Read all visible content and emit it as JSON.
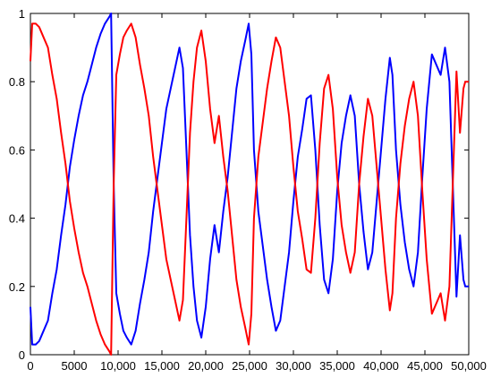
{
  "chart_data": {
    "type": "line",
    "title": "",
    "xlabel": "",
    "ylabel": "",
    "xlim": [
      0,
      50000
    ],
    "ylim": [
      0,
      1
    ],
    "grid": false,
    "x_ticks": [
      0,
      5000,
      10000,
      15000,
      20000,
      25000,
      30000,
      35000,
      40000,
      45000,
      50000
    ],
    "x_tick_labels": [
      "0",
      "5000",
      "10,000",
      "15,000",
      "20,000",
      "25,000",
      "30,000",
      "35,000",
      "40,000",
      "45,000",
      "50,000"
    ],
    "y_ticks": [
      0,
      0.2,
      0.4,
      0.6,
      0.8,
      1
    ],
    "y_tick_labels": [
      "0",
      "0.2",
      "0.4",
      "0.6",
      "0.8",
      "1"
    ],
    "series": [
      {
        "color": "#0000ff",
        "points": [
          [
            0,
            0.14
          ],
          [
            200,
            0.03
          ],
          [
            600,
            0.03
          ],
          [
            1000,
            0.04
          ],
          [
            1500,
            0.07
          ],
          [
            2000,
            0.1
          ],
          [
            2500,
            0.18
          ],
          [
            3000,
            0.25
          ],
          [
            3500,
            0.35
          ],
          [
            4000,
            0.44
          ],
          [
            4500,
            0.55
          ],
          [
            5000,
            0.63
          ],
          [
            5500,
            0.7
          ],
          [
            6000,
            0.76
          ],
          [
            6500,
            0.8
          ],
          [
            7000,
            0.85
          ],
          [
            7500,
            0.9
          ],
          [
            8000,
            0.94
          ],
          [
            8500,
            0.97
          ],
          [
            9000,
            0.99
          ],
          [
            9200,
            1.0
          ],
          [
            9500,
            0.5
          ],
          [
            9800,
            0.18
          ],
          [
            10200,
            0.12
          ],
          [
            10600,
            0.07
          ],
          [
            11000,
            0.05
          ],
          [
            11500,
            0.03
          ],
          [
            12000,
            0.07
          ],
          [
            12500,
            0.15
          ],
          [
            13000,
            0.22
          ],
          [
            13500,
            0.3
          ],
          [
            14000,
            0.42
          ],
          [
            14500,
            0.52
          ],
          [
            15000,
            0.62
          ],
          [
            15500,
            0.72
          ],
          [
            16000,
            0.78
          ],
          [
            16500,
            0.84
          ],
          [
            17000,
            0.9
          ],
          [
            17400,
            0.84
          ],
          [
            17800,
            0.6
          ],
          [
            18200,
            0.35
          ],
          [
            18600,
            0.2
          ],
          [
            19000,
            0.1
          ],
          [
            19500,
            0.05
          ],
          [
            20000,
            0.14
          ],
          [
            20500,
            0.28
          ],
          [
            21000,
            0.38
          ],
          [
            21500,
            0.3
          ],
          [
            22000,
            0.42
          ],
          [
            22500,
            0.52
          ],
          [
            23000,
            0.65
          ],
          [
            23500,
            0.78
          ],
          [
            24000,
            0.86
          ],
          [
            24500,
            0.92
          ],
          [
            24900,
            0.97
          ],
          [
            25200,
            0.88
          ],
          [
            25500,
            0.6
          ],
          [
            26000,
            0.42
          ],
          [
            26500,
            0.32
          ],
          [
            27000,
            0.22
          ],
          [
            27500,
            0.14
          ],
          [
            28000,
            0.07
          ],
          [
            28500,
            0.1
          ],
          [
            29000,
            0.2
          ],
          [
            29500,
            0.3
          ],
          [
            30000,
            0.45
          ],
          [
            30500,
            0.58
          ],
          [
            31000,
            0.66
          ],
          [
            31500,
            0.75
          ],
          [
            32000,
            0.76
          ],
          [
            32500,
            0.6
          ],
          [
            33000,
            0.38
          ],
          [
            33500,
            0.22
          ],
          [
            34000,
            0.18
          ],
          [
            34500,
            0.28
          ],
          [
            35000,
            0.48
          ],
          [
            35500,
            0.62
          ],
          [
            36000,
            0.7
          ],
          [
            36500,
            0.76
          ],
          [
            37000,
            0.7
          ],
          [
            37500,
            0.5
          ],
          [
            38000,
            0.36
          ],
          [
            38500,
            0.25
          ],
          [
            39000,
            0.3
          ],
          [
            39500,
            0.45
          ],
          [
            40000,
            0.6
          ],
          [
            40500,
            0.75
          ],
          [
            41000,
            0.87
          ],
          [
            41300,
            0.82
          ],
          [
            41700,
            0.6
          ],
          [
            42200,
            0.44
          ],
          [
            42700,
            0.33
          ],
          [
            43200,
            0.25
          ],
          [
            43700,
            0.2
          ],
          [
            44200,
            0.3
          ],
          [
            44700,
            0.52
          ],
          [
            45200,
            0.72
          ],
          [
            45800,
            0.88
          ],
          [
            46300,
            0.85
          ],
          [
            46800,
            0.82
          ],
          [
            47300,
            0.9
          ],
          [
            47800,
            0.8
          ],
          [
            48200,
            0.48
          ],
          [
            48600,
            0.17
          ],
          [
            49000,
            0.35
          ],
          [
            49400,
            0.22
          ],
          [
            49600,
            0.2
          ],
          [
            50000,
            0.2
          ]
        ]
      },
      {
        "color": "#ff0000",
        "points": [
          [
            0,
            0.86
          ],
          [
            200,
            0.97
          ],
          [
            600,
            0.97
          ],
          [
            1000,
            0.96
          ],
          [
            1500,
            0.93
          ],
          [
            2000,
            0.9
          ],
          [
            2500,
            0.82
          ],
          [
            3000,
            0.75
          ],
          [
            3500,
            0.65
          ],
          [
            4000,
            0.56
          ],
          [
            4500,
            0.45
          ],
          [
            5000,
            0.37
          ],
          [
            5500,
            0.3
          ],
          [
            6000,
            0.24
          ],
          [
            6500,
            0.2
          ],
          [
            7000,
            0.15
          ],
          [
            7500,
            0.1
          ],
          [
            8000,
            0.06
          ],
          [
            8500,
            0.03
          ],
          [
            9000,
            0.01
          ],
          [
            9200,
            0.0
          ],
          [
            9500,
            0.5
          ],
          [
            9800,
            0.82
          ],
          [
            10200,
            0.88
          ],
          [
            10600,
            0.93
          ],
          [
            11000,
            0.95
          ],
          [
            11500,
            0.97
          ],
          [
            12000,
            0.93
          ],
          [
            12500,
            0.85
          ],
          [
            13000,
            0.78
          ],
          [
            13500,
            0.7
          ],
          [
            14000,
            0.58
          ],
          [
            14500,
            0.48
          ],
          [
            15000,
            0.38
          ],
          [
            15500,
            0.28
          ],
          [
            16000,
            0.22
          ],
          [
            16500,
            0.16
          ],
          [
            17000,
            0.1
          ],
          [
            17400,
            0.16
          ],
          [
            17800,
            0.4
          ],
          [
            18200,
            0.65
          ],
          [
            18600,
            0.8
          ],
          [
            19000,
            0.9
          ],
          [
            19500,
            0.95
          ],
          [
            20000,
            0.86
          ],
          [
            20500,
            0.72
          ],
          [
            21000,
            0.62
          ],
          [
            21500,
            0.7
          ],
          [
            22000,
            0.58
          ],
          [
            22500,
            0.48
          ],
          [
            23000,
            0.35
          ],
          [
            23500,
            0.22
          ],
          [
            24000,
            0.14
          ],
          [
            24500,
            0.08
          ],
          [
            24900,
            0.03
          ],
          [
            25200,
            0.12
          ],
          [
            25500,
            0.4
          ],
          [
            26000,
            0.58
          ],
          [
            26500,
            0.68
          ],
          [
            27000,
            0.78
          ],
          [
            27500,
            0.86
          ],
          [
            28000,
            0.93
          ],
          [
            28500,
            0.9
          ],
          [
            29000,
            0.8
          ],
          [
            29500,
            0.7
          ],
          [
            30000,
            0.55
          ],
          [
            30500,
            0.42
          ],
          [
            31000,
            0.34
          ],
          [
            31500,
            0.25
          ],
          [
            32000,
            0.24
          ],
          [
            32500,
            0.4
          ],
          [
            33000,
            0.62
          ],
          [
            33500,
            0.78
          ],
          [
            34000,
            0.82
          ],
          [
            34500,
            0.72
          ],
          [
            35000,
            0.52
          ],
          [
            35500,
            0.38
          ],
          [
            36000,
            0.3
          ],
          [
            36500,
            0.24
          ],
          [
            37000,
            0.3
          ],
          [
            37500,
            0.5
          ],
          [
            38000,
            0.64
          ],
          [
            38500,
            0.75
          ],
          [
            39000,
            0.7
          ],
          [
            39500,
            0.55
          ],
          [
            40000,
            0.4
          ],
          [
            40500,
            0.25
          ],
          [
            41000,
            0.13
          ],
          [
            41300,
            0.18
          ],
          [
            41700,
            0.4
          ],
          [
            42200,
            0.56
          ],
          [
            42700,
            0.67
          ],
          [
            43200,
            0.75
          ],
          [
            43700,
            0.8
          ],
          [
            44200,
            0.7
          ],
          [
            44700,
            0.48
          ],
          [
            45200,
            0.28
          ],
          [
            45800,
            0.12
          ],
          [
            46300,
            0.15
          ],
          [
            46800,
            0.18
          ],
          [
            47300,
            0.1
          ],
          [
            47800,
            0.2
          ],
          [
            48200,
            0.52
          ],
          [
            48600,
            0.83
          ],
          [
            49000,
            0.65
          ],
          [
            49400,
            0.78
          ],
          [
            49600,
            0.8
          ],
          [
            50000,
            0.8
          ]
        ]
      }
    ]
  }
}
